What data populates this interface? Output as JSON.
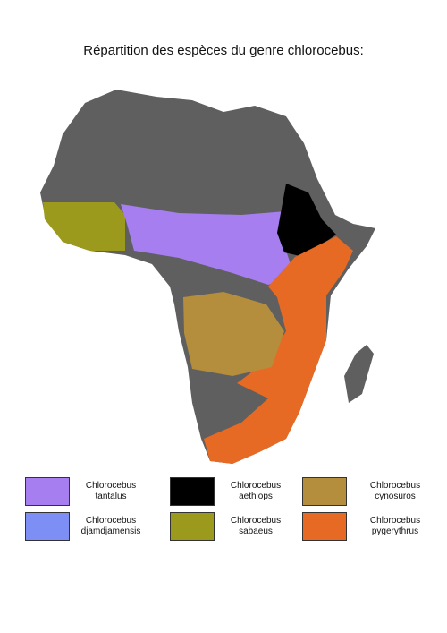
{
  "title": "Répartition des espèces du genre chlorocebus:",
  "legend": {
    "items": [
      {
        "label": "Chlorocebus tantalus",
        "color": "#a67ef0"
      },
      {
        "label": "Chlorocebus djamdjamensis",
        "color": "#7d8ef5"
      },
      {
        "label": "Chlorocebus aethiops",
        "color": "#000000"
      },
      {
        "label": "Chlorocebus sabaeus",
        "color": "#9b9a1d"
      },
      {
        "label": "Chlorocebus cynosuros",
        "color": "#b48d3d"
      },
      {
        "label": "Chlorocebus pygerythrus",
        "color": "#e66a24"
      }
    ]
  }
}
